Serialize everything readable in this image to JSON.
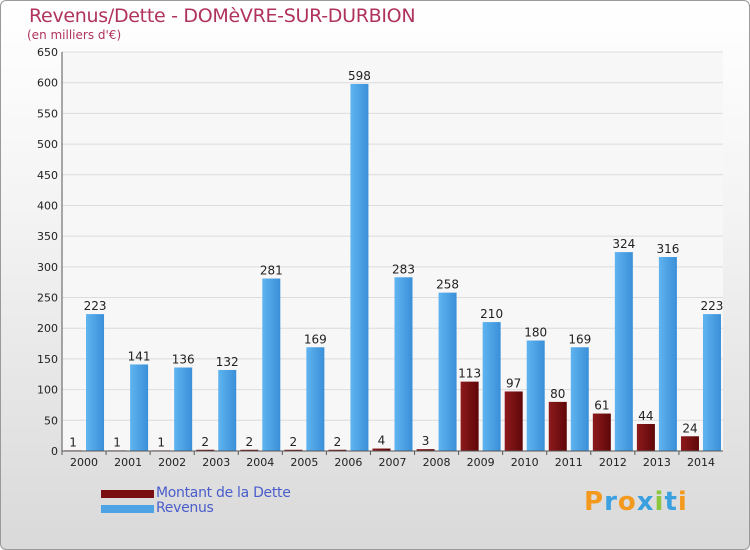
{
  "title": "Revenus/Dette - DOMèVRE-SUR-DURBION",
  "subtitle": "(en milliers d'€)",
  "logo_text": "Proxiti",
  "colors": {
    "debt": "#7a0e10",
    "revenue": "#4ea3e4",
    "title": "#b0335d",
    "legend_text": "#4a5dcb"
  },
  "chart_data": {
    "type": "bar",
    "categories": [
      "2000",
      "2001",
      "2002",
      "2003",
      "2004",
      "2005",
      "2006",
      "2007",
      "2008",
      "2009",
      "2010",
      "2011",
      "2012",
      "2013",
      "2014"
    ],
    "series": [
      {
        "name": "Montant de la Dette",
        "values": [
          1,
          1,
          1,
          2,
          2,
          2,
          2,
          4,
          3,
          113,
          97,
          80,
          61,
          44,
          24
        ]
      },
      {
        "name": "Revenus",
        "values": [
          223,
          141,
          136,
          132,
          281,
          169,
          598,
          283,
          258,
          210,
          180,
          169,
          324,
          316,
          223
        ]
      }
    ],
    "ylim": [
      0,
      650
    ],
    "yticks": [
      0,
      50,
      100,
      150,
      200,
      250,
      300,
      350,
      400,
      450,
      500,
      550,
      600,
      650
    ],
    "grid": true,
    "legend": "bottom-left"
  }
}
